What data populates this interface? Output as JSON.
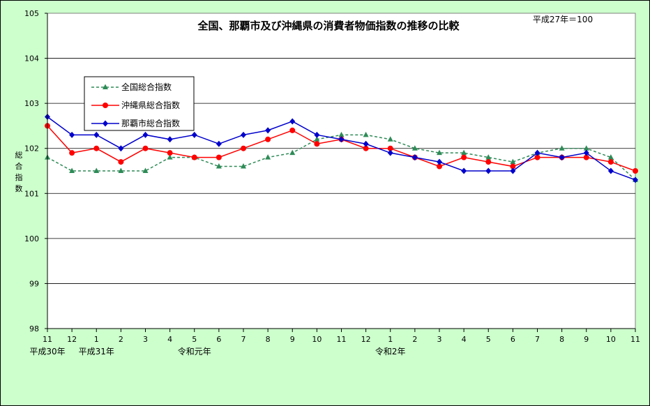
{
  "chart_data": {
    "type": "line",
    "title": "全国、那覇市及び沖縄県の消費者物価指数の推移の比較",
    "subtitle": "平成27年＝100",
    "ylabel": "総合指数",
    "ylim": [
      98,
      105
    ],
    "yticks": [
      "98",
      "99",
      "100",
      "101",
      "102",
      "103",
      "104",
      "105"
    ],
    "grid": true,
    "legend_position": "top-left",
    "categories": [
      "11",
      "12",
      "1",
      "2",
      "3",
      "4",
      "5",
      "6",
      "7",
      "8",
      "9",
      "10",
      "11",
      "12",
      "1",
      "2",
      "3",
      "4",
      "5",
      "6",
      "7",
      "8",
      "9",
      "10",
      "11"
    ],
    "era_labels": [
      {
        "index": 0,
        "text": "平成30年"
      },
      {
        "index": 2,
        "text": "平成31年"
      },
      {
        "index": 6,
        "text": "令和元年"
      },
      {
        "index": 14,
        "text": "令和2年"
      }
    ],
    "series": [
      {
        "name": "全国総合指数",
        "color": "#2e8b57",
        "marker": "triangle",
        "dashed": true,
        "values": [
          101.8,
          101.5,
          101.5,
          101.5,
          101.5,
          101.8,
          101.8,
          101.6,
          101.6,
          101.8,
          101.9,
          102.2,
          102.3,
          102.3,
          102.2,
          102.0,
          101.9,
          101.9,
          101.8,
          101.7,
          101.9,
          102.0,
          102.0,
          101.8,
          101.3
        ]
      },
      {
        "name": "沖縄県総合指数",
        "color": "#ff0000",
        "marker": "circle",
        "dashed": false,
        "values": [
          102.5,
          101.9,
          102.0,
          101.7,
          102.0,
          101.9,
          101.8,
          101.8,
          102.0,
          102.2,
          102.4,
          102.1,
          102.2,
          102.0,
          102.0,
          101.8,
          101.6,
          101.8,
          101.7,
          101.6,
          101.8,
          101.8,
          101.8,
          101.7,
          101.5
        ]
      },
      {
        "name": "那覇市総合指数",
        "color": "#0000cc",
        "marker": "diamond",
        "dashed": false,
        "values": [
          102.7,
          102.3,
          102.3,
          102.0,
          102.3,
          102.2,
          102.3,
          102.1,
          102.3,
          102.4,
          102.6,
          102.3,
          102.2,
          102.1,
          101.9,
          101.8,
          101.7,
          101.5,
          101.5,
          101.5,
          101.9,
          101.8,
          101.9,
          101.5,
          101.3
        ]
      }
    ]
  }
}
